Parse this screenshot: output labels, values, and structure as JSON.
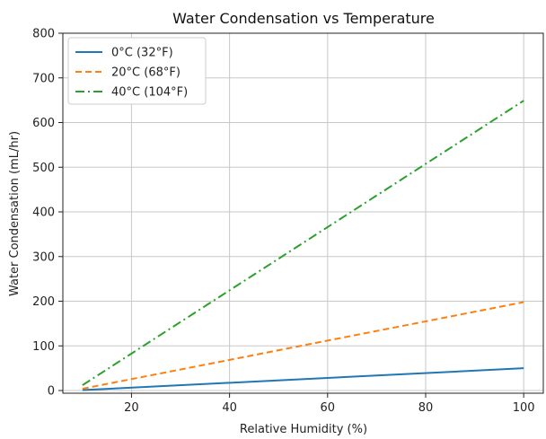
{
  "chart_data": {
    "type": "line",
    "title": "Water Condensation vs Temperature",
    "xlabel": "Relative Humidity (%)",
    "ylabel": "Water Condensation (mL/hr)",
    "xlim": [
      6,
      104
    ],
    "ylim": [
      -6,
      800
    ],
    "xticks": [
      20,
      40,
      60,
      80,
      100
    ],
    "yticks": [
      0,
      100,
      200,
      300,
      400,
      500,
      600,
      700,
      800
    ],
    "grid": true,
    "legend_position": "top-left",
    "series": [
      {
        "name": "0°C (32°F)",
        "color": "#1f77b4",
        "dash": "solid",
        "x": [
          10,
          100
        ],
        "y": [
          1,
          50
        ]
      },
      {
        "name": "20°C (68°F)",
        "color": "#ff7f0e",
        "dash": "dashed",
        "x": [
          10,
          100
        ],
        "y": [
          4,
          198
        ]
      },
      {
        "name": "40°C (104°F)",
        "color": "#2ca02c",
        "dash": "dashdot",
        "x": [
          10,
          100
        ],
        "y": [
          12,
          649
        ]
      }
    ]
  }
}
